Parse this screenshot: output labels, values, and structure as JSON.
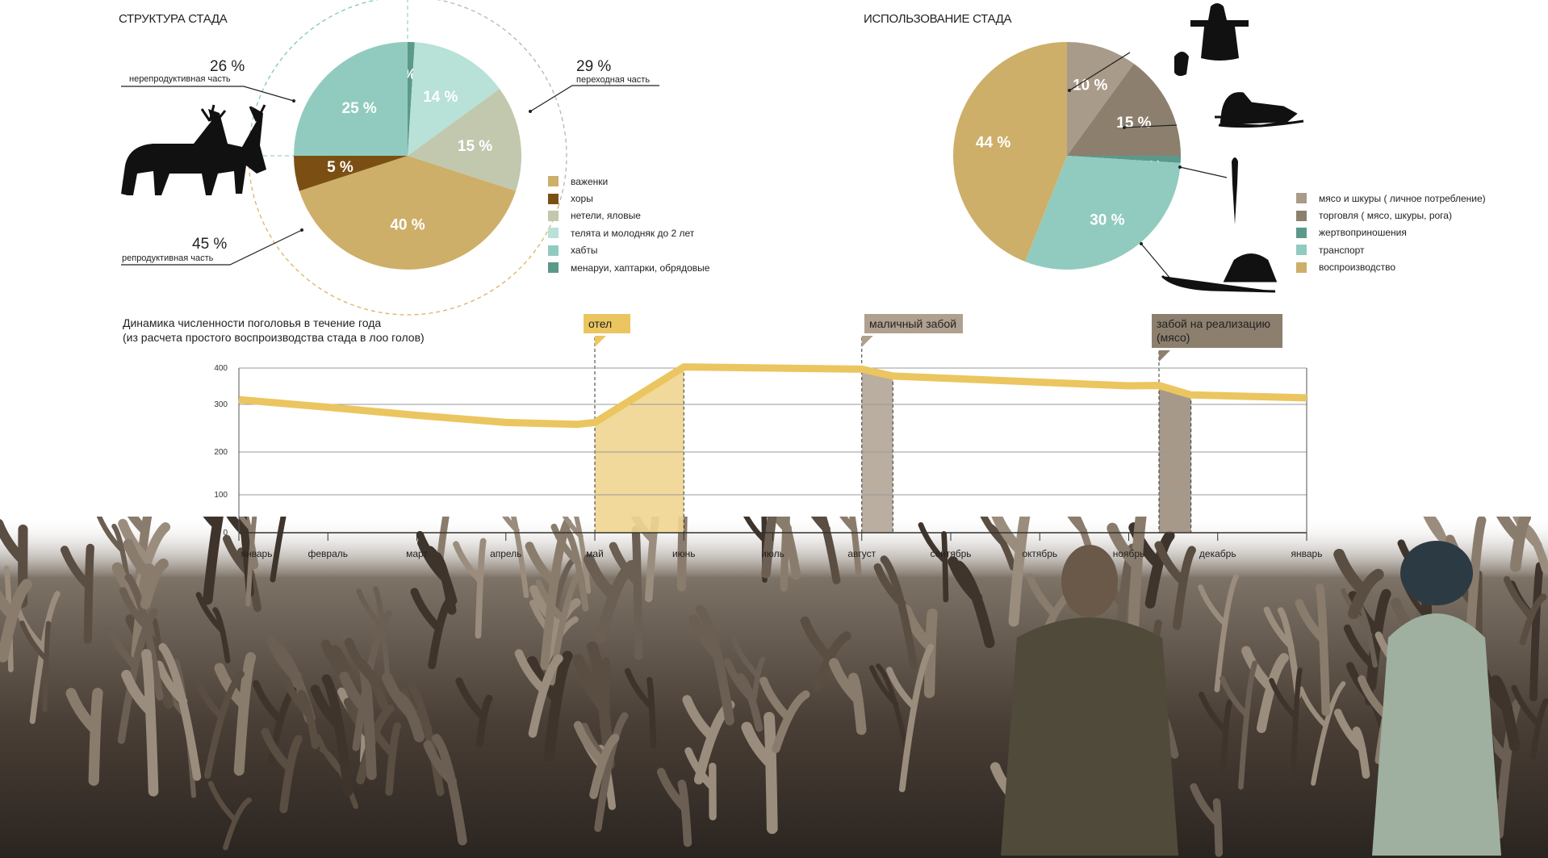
{
  "colors": {
    "line": "#ebc55f",
    "calving_band": "#f0d590",
    "calving_flag": "#ebc55f",
    "slaughter1_band": "#b3a596",
    "slaughter1_flag": "#b0a090",
    "slaughter2_band": "#9c8e7c",
    "slaughter2_flag": "#8c7f6e"
  },
  "chart_data": [
    {
      "type": "pie",
      "title": "СТРУКТУРА СТАДА",
      "slices": [
        {
          "label": "менаруи, хаптарки, обрядовые",
          "value": 1,
          "color": "#5b998a",
          "text": "1 %"
        },
        {
          "label": "телята и молодняк до 2 лет",
          "value": 14,
          "color": "#b8e1d8",
          "text": "14 %"
        },
        {
          "label": "нетели, яловые",
          "value": 15,
          "color": "#c1c8ad",
          "text": "15 %"
        },
        {
          "label": "важенки",
          "value": 40,
          "color": "#cdaf69",
          "text": "40 %"
        },
        {
          "label": "хоры",
          "value": 5,
          "color": "#7b4f14",
          "text": "5 %"
        },
        {
          "label": "хабты",
          "value": 25,
          "color": "#91cbbf",
          "text": "25 %"
        }
      ],
      "legend_order": [
        3,
        4,
        2,
        1,
        5,
        0
      ],
      "groups": [
        {
          "pct": "26 %",
          "label": "нерепродуктивная часть"
        },
        {
          "pct": "29 %",
          "label": "переходная часть"
        },
        {
          "pct": "45 %",
          "label": "репродуктивная часть"
        }
      ]
    },
    {
      "type": "pie",
      "title": "ИСПОЛЬЗОВАНИЕ СТАДА",
      "slices": [
        {
          "label": "мясо и шкуры ( личное потребление)",
          "value": 10,
          "color": "#a99b89",
          "text": "10 %"
        },
        {
          "label": "торговля ( мясо, шкуры, рога)",
          "value": 15,
          "color": "#8c7f6e",
          "text": "15 %"
        },
        {
          "label": "жертвоприношения",
          "value": 1,
          "color": "#5b998a",
          "text": "1 %"
        },
        {
          "label": "транспорт",
          "value": 30,
          "color": "#91cbbf",
          "text": "30 %"
        },
        {
          "label": "воспроизводство",
          "value": 44,
          "color": "#cdaf69",
          "text": "44 %"
        }
      ],
      "legend_order": [
        0,
        1,
        2,
        3,
        4
      ]
    },
    {
      "type": "line",
      "title": "Динамика численности поголовья в течение года",
      "subtitle": "(из расчета простого воспроизводства стада в лоо голов)",
      "xlabels": [
        "январь",
        "февраль",
        "март",
        "апрель",
        "май",
        "июнь",
        "июль",
        "август",
        "сентябрь",
        "октябрь",
        "ноябрь",
        "декабрь",
        "январь"
      ],
      "yticks": [
        0,
        100,
        200,
        300,
        400
      ],
      "ylim": [
        0,
        400
      ],
      "series": [
        {
          "name": "поголовье",
          "x": [
            0,
            1,
            2,
            3,
            3.8,
            4,
            5,
            7,
            7.35,
            10,
            10.34,
            10.7,
            12
          ],
          "y": [
            313,
            294,
            277,
            262,
            258,
            262,
            403,
            397,
            378,
            351,
            352,
            326,
            318
          ]
        }
      ],
      "bands": [
        {
          "label": "отел",
          "from": 4,
          "to": 5
        },
        {
          "label": "маличный забой",
          "from": 7,
          "to": 7.35
        },
        {
          "label": "забой на реализацию (мясо)",
          "from": 10.34,
          "to": 10.7
        }
      ]
    }
  ]
}
